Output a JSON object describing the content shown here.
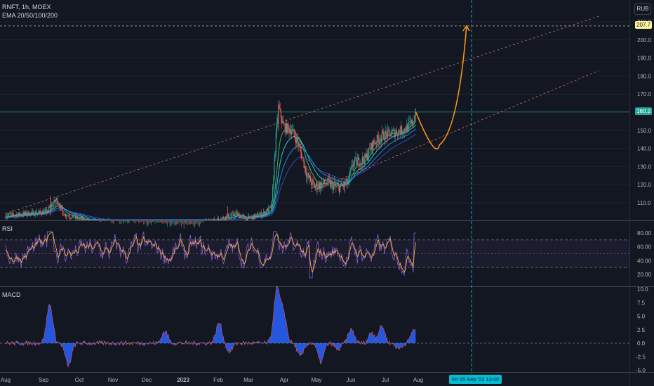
{
  "header": {
    "symbol_line": "RNFT, 1h, MOEX",
    "ema_line": "EMA 20/50/100/200",
    "currency": "RUB"
  },
  "price_tags": {
    "target": "207.7",
    "current": "160.2"
  },
  "date_tag": "Fri 15 Sep '23   13:00",
  "colors": {
    "background": "#131722",
    "up": "#26a69a",
    "down": "#ef5350",
    "projection": "#f7931a",
    "rsi_line": "#7e57c2",
    "rsi_ma": "#f5b041",
    "macd_fill": "#2962ff",
    "cursor": "#00bcd4"
  },
  "chart_data": [
    {
      "type": "candlestick",
      "panel": "price",
      "symbol": "RNFT",
      "interval": "1h",
      "exchange": "MOEX",
      "indicators": [
        "EMA 20",
        "EMA 50",
        "EMA 100",
        "EMA 200"
      ],
      "y_ticks": [
        110.0,
        120.0,
        130.0,
        140.0,
        150.0,
        160.0,
        170.0,
        180.0,
        190.0,
        200.0,
        210.0
      ],
      "ylim": [
        103,
        214
      ],
      "x_ticks": [
        "Aug",
        "Sep",
        "Oct",
        "Nov",
        "Dec",
        "2023",
        "Feb",
        "Mar",
        "Apr",
        "May",
        "Jun",
        "Jul",
        "Aug"
      ],
      "price_path": [
        {
          "t": 0,
          "p": 103
        },
        {
          "t": 1.2,
          "p": 105
        },
        {
          "t": 1.5,
          "p": 112
        },
        {
          "t": 1.7,
          "p": 104
        },
        {
          "t": 2.5,
          "p": 99
        },
        {
          "t": 5.5,
          "p": 96
        },
        {
          "t": 6.8,
          "p": 104
        },
        {
          "t": 7.1,
          "p": 101
        },
        {
          "t": 7.6,
          "p": 104
        },
        {
          "t": 7.85,
          "p": 108
        },
        {
          "t": 7.95,
          "p": 140
        },
        {
          "t": 8.05,
          "p": 163
        },
        {
          "t": 8.2,
          "p": 152
        },
        {
          "t": 8.45,
          "p": 150
        },
        {
          "t": 8.65,
          "p": 142
        },
        {
          "t": 8.9,
          "p": 125
        },
        {
          "t": 9.1,
          "p": 119
        },
        {
          "t": 9.5,
          "p": 121
        },
        {
          "t": 9.8,
          "p": 118
        },
        {
          "t": 10.1,
          "p": 121
        },
        {
          "t": 10.25,
          "p": 132
        },
        {
          "t": 10.6,
          "p": 134
        },
        {
          "t": 10.85,
          "p": 143
        },
        {
          "t": 11.1,
          "p": 147
        },
        {
          "t": 11.5,
          "p": 149
        },
        {
          "t": 11.8,
          "p": 151
        },
        {
          "t": 12.0,
          "p": 154
        },
        {
          "t": 12.1,
          "p": 160.2
        }
      ],
      "projection": [
        {
          "t": 12.1,
          "p": 160.2
        },
        {
          "t": 12.8,
          "p": 142
        },
        {
          "t": 13.2,
          "p": 151
        },
        {
          "t": 13.6,
          "p": 207.7
        }
      ],
      "channel_upper": [
        {
          "t": 0,
          "p": 104
        },
        {
          "t": 17.5,
          "p": 213
        }
      ],
      "channel_lower": [
        {
          "t": 9.0,
          "p": 116
        },
        {
          "t": 17.5,
          "p": 183
        }
      ],
      "horizontal_levels": [
        207.7,
        160.2
      ],
      "cursor_time": "Fri 15 Sep '23 13:00"
    },
    {
      "type": "line",
      "panel": "oscillator",
      "title": "RSI",
      "y_ticks": [
        20.0,
        40.0,
        60.0,
        80.0
      ],
      "ylim": [
        4,
        90
      ],
      "band": [
        30,
        70
      ],
      "midline": 50
    },
    {
      "type": "area",
      "panel": "oscillator",
      "title": "MACD",
      "y_ticks": [
        -5.0,
        -2.5,
        0.0,
        2.5,
        5.0,
        7.5,
        10.0
      ],
      "ylim": [
        -6,
        10
      ],
      "spikes": [
        {
          "t": 1.3,
          "v": 7.2
        },
        {
          "t": 1.85,
          "v": -4.2
        },
        {
          "t": 4.7,
          "v": 2.2
        },
        {
          "t": 6.3,
          "v": 3.8
        },
        {
          "t": 6.6,
          "v": -1.6
        },
        {
          "t": 8.0,
          "v": 9.8
        },
        {
          "t": 8.2,
          "v": 5.5
        },
        {
          "t": 8.7,
          "v": -2.5
        },
        {
          "t": 9.3,
          "v": -3.5
        },
        {
          "t": 9.8,
          "v": -1.2
        },
        {
          "t": 10.2,
          "v": 2.5
        },
        {
          "t": 10.8,
          "v": 2.0
        },
        {
          "t": 11.1,
          "v": 3.2
        },
        {
          "t": 11.6,
          "v": -1.0
        },
        {
          "t": 12.05,
          "v": 2.6
        }
      ]
    }
  ]
}
